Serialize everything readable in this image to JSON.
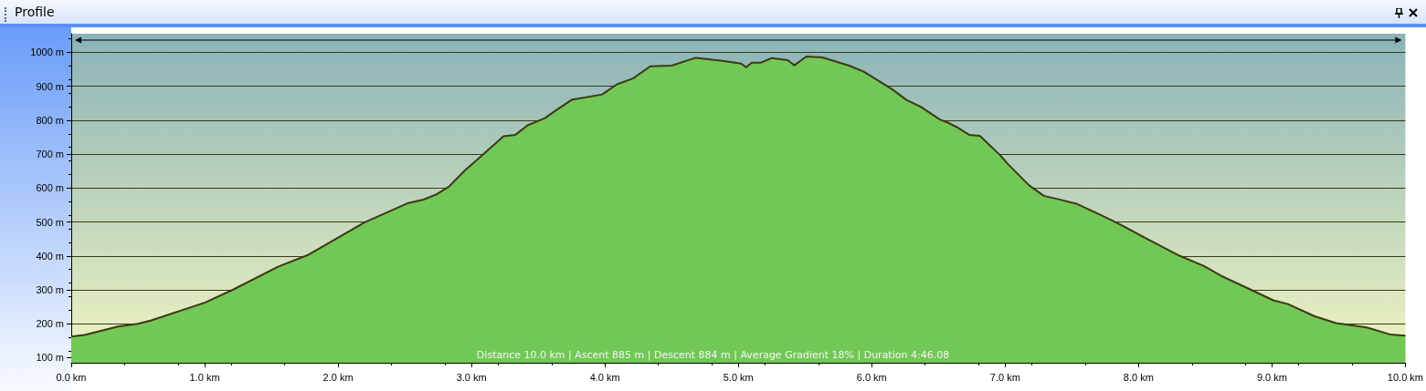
{
  "chart_data": {
    "type": "area",
    "title": "Profile",
    "color": "#72c856",
    "x": [
      0,
      0.1,
      0.35,
      0.5,
      0.6,
      1.0,
      1.21,
      1.55,
      1.77,
      2.2,
      2.52,
      2.64,
      2.73,
      2.83,
      2.95,
      3.05,
      3.24,
      3.33,
      3.42,
      3.55,
      3.64,
      3.75,
      3.98,
      4.09,
      4.21,
      4.34,
      4.5,
      4.68,
      4.88,
      5.02,
      5.06,
      5.1,
      5.17,
      5.25,
      5.37,
      5.42,
      5.51,
      5.63,
      5.83,
      5.94,
      6.15,
      6.26,
      6.37,
      6.51,
      6.57,
      6.64,
      6.73,
      6.81,
      6.96,
      7.02,
      7.18,
      7.29,
      7.4,
      7.54,
      7.72,
      7.86,
      8.08,
      8.31,
      8.49,
      8.62,
      8.8,
      9.01,
      9.12,
      9.32,
      9.48,
      9.71,
      9.89,
      10.0
    ],
    "values": [
      162,
      167,
      192,
      200,
      210,
      262,
      300,
      368,
      402,
      499,
      555,
      566,
      580,
      604,
      652,
      686,
      753,
      757,
      785,
      806,
      831,
      860,
      876,
      906,
      923,
      959,
      961,
      984,
      975,
      967,
      956,
      970,
      970,
      983,
      977,
      962,
      988,
      985,
      961,
      943,
      892,
      860,
      839,
      802,
      793,
      779,
      757,
      754,
      698,
      671,
      608,
      577,
      567,
      553,
      520,
      493,
      447,
      400,
      370,
      341,
      308,
      269,
      258,
      222,
      202,
      189,
      168,
      165
    ],
    "xlim": [
      0,
      10
    ],
    "xticks": [
      {
        "value": 0,
        "label": "0.0 km"
      },
      {
        "value": 1,
        "label": "1.0 km"
      },
      {
        "value": 2,
        "label": "2.0 km"
      },
      {
        "value": 3,
        "label": "3.0 km"
      },
      {
        "value": 4,
        "label": "4.0 km"
      },
      {
        "value": 5,
        "label": "5.0 km"
      },
      {
        "value": 6,
        "label": "6.0 km"
      },
      {
        "value": 7,
        "label": "7.0 km"
      },
      {
        "value": 8,
        "label": "8.0 km"
      },
      {
        "value": 9,
        "label": "9.0 km"
      },
      {
        "value": 10,
        "label": "10.0 km"
      }
    ],
    "ylim": [
      85,
      1055
    ],
    "yticks": [
      {
        "value": 100,
        "label": "100 m"
      },
      {
        "value": 200,
        "label": "200 m"
      },
      {
        "value": 300,
        "label": "300 m"
      },
      {
        "value": 400,
        "label": "400 m"
      },
      {
        "value": 500,
        "label": "500 m"
      },
      {
        "value": 600,
        "label": "600 m"
      },
      {
        "value": 700,
        "label": "700 m"
      },
      {
        "value": 800,
        "label": "800 m"
      },
      {
        "value": 900,
        "label": "900 m"
      },
      {
        "value": 1000,
        "label": "1000 m"
      }
    ],
    "grid": "y",
    "annotations": [
      "Distance 10.0 km | Ascent 885 m | Descent 884 m | Average Gradient 18% | Duration 4:46.08"
    ]
  }
}
